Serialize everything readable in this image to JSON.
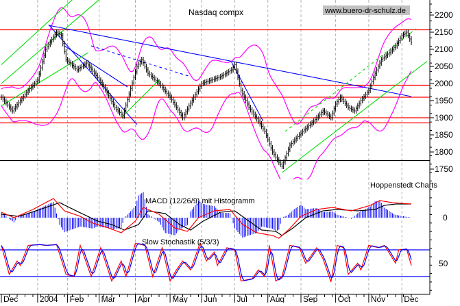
{
  "chart_data": {
    "type": "line",
    "title": "Nasdaq compx",
    "watermark": "www.buero-dr-schulz.de",
    "source_label": "Hoppenstedt Charts",
    "colors": {
      "price": "#000000",
      "bands": "#ff00ff",
      "resistance": "#ff0000",
      "trend_blue": "#0000ff",
      "trend_green": "#00ff00",
      "macd": "#000000",
      "signal": "#ff0000",
      "histogram": "#0000ff",
      "stoch_k": "#ff0000",
      "stoch_d": "#0000ff"
    },
    "x_unit": "trading day index",
    "month_ticks": [
      {
        "day": 0,
        "label": "Dec"
      },
      {
        "day": 23,
        "label": "2004"
      },
      {
        "day": 42,
        "label": "Feb"
      },
      {
        "day": 62,
        "label": "Mar"
      },
      {
        "day": 85,
        "label": "Apr"
      },
      {
        "day": 107,
        "label": "May"
      },
      {
        "day": 127,
        "label": "Jun"
      },
      {
        "day": 148,
        "label": "Jul"
      },
      {
        "day": 169,
        "label": "Aug"
      },
      {
        "day": 190,
        "label": "Sep"
      },
      {
        "day": 212,
        "label": "Oct"
      },
      {
        "day": 233,
        "label": "Nov"
      },
      {
        "day": 254,
        "label": "Dec"
      }
    ],
    "price_axis": {
      "ticks": [
        2200,
        2150,
        2100,
        2050,
        2000,
        1950,
        1900,
        1850,
        1800,
        1750
      ],
      "ylim": [
        1730,
        2245
      ]
    },
    "price_points": [
      [
        0,
        1960
      ],
      [
        7,
        1920
      ],
      [
        17,
        1980
      ],
      [
        23,
        2010
      ],
      [
        28,
        2100
      ],
      [
        35,
        2150
      ],
      [
        38,
        2140
      ],
      [
        41,
        2070
      ],
      [
        48,
        2040
      ],
      [
        54,
        2060
      ],
      [
        59,
        2030
      ],
      [
        65,
        1990
      ],
      [
        72,
        1930
      ],
      [
        77,
        1905
      ],
      [
        86,
        2050
      ],
      [
        89,
        2070
      ],
      [
        93,
        2030
      ],
      [
        100,
        2000
      ],
      [
        107,
        1960
      ],
      [
        111,
        1930
      ],
      [
        115,
        1900
      ],
      [
        122,
        1960
      ],
      [
        127,
        2000
      ],
      [
        133,
        2010
      ],
      [
        139,
        2020
      ],
      [
        146,
        2040
      ],
      [
        148,
        2055
      ],
      [
        152,
        1980
      ],
      [
        157,
        1930
      ],
      [
        163,
        1890
      ],
      [
        167,
        1860
      ],
      [
        172,
        1800
      ],
      [
        176,
        1770
      ],
      [
        178,
        1758
      ],
      [
        183,
        1820
      ],
      [
        187,
        1840
      ],
      [
        191,
        1860
      ],
      [
        198,
        1890
      ],
      [
        204,
        1920
      ],
      [
        209,
        1900
      ],
      [
        212,
        1940
      ],
      [
        215,
        1960
      ],
      [
        220,
        1930
      ],
      [
        224,
        1920
      ],
      [
        228,
        1950
      ],
      [
        233,
        1980
      ],
      [
        237,
        2030
      ],
      [
        241,
        2070
      ],
      [
        246,
        2090
      ],
      [
        250,
        2110
      ],
      [
        254,
        2140
      ],
      [
        257,
        2150
      ],
      [
        260,
        2120
      ]
    ],
    "horizontal_lines": [
      {
        "price": 2157,
        "color": "red"
      },
      {
        "price": 1995,
        "color": "red"
      },
      {
        "price": 1960,
        "color": "red"
      },
      {
        "price": 1900,
        "color": "red"
      },
      {
        "price": 1885,
        "color": "red"
      },
      {
        "price": 1775,
        "color": "black"
      }
    ],
    "trend_lines": [
      {
        "from": [
          30,
          2170
        ],
        "to": [
          260,
          1962
        ],
        "color": "blue",
        "dashed": false
      },
      {
        "from": [
          30,
          2172
        ],
        "to": [
          86,
          1880
        ],
        "color": "blue",
        "dashed": false
      },
      {
        "from": [
          40,
          2110
        ],
        "to": [
          80,
          1990
        ],
        "color": "blue",
        "dashed": false
      },
      {
        "from": [
          57,
          2110
        ],
        "to": [
          120,
          2020
        ],
        "color": "blue",
        "dashed": true
      },
      {
        "from": [
          146,
          2062
        ],
        "to": [
          166,
          1890
        ],
        "color": "blue",
        "dashed": false
      },
      {
        "from": [
          0,
          2055
        ],
        "to": [
          45,
          2245
        ],
        "color": "green",
        "dashed": false
      },
      {
        "from": [
          0,
          2000
        ],
        "to": [
          62,
          2245
        ],
        "color": "green",
        "dashed": false
      },
      {
        "from": [
          0,
          1935
        ],
        "to": [
          55,
          2090
        ],
        "color": "green",
        "dashed": false
      },
      {
        "from": [
          76,
          1900
        ],
        "to": [
          100,
          2010
        ],
        "color": "green",
        "dashed": false
      },
      {
        "from": [
          178,
          1740
        ],
        "to": [
          270,
          2065
        ],
        "color": "green",
        "dashed": false
      },
      {
        "from": [
          180,
          1860
        ],
        "to": [
          263,
          2160
        ],
        "color": "green",
        "dashed": true
      }
    ],
    "macd": {
      "label": "MACD (12/26/9) mit Histogramm",
      "zero_label": "0",
      "macd_points": [
        [
          0,
          5
        ],
        [
          11,
          2
        ],
        [
          22,
          10
        ],
        [
          37,
          22
        ],
        [
          43,
          15
        ],
        [
          52,
          5
        ],
        [
          61,
          -5
        ],
        [
          70,
          -10
        ],
        [
          78,
          -18
        ],
        [
          87,
          -10
        ],
        [
          93,
          10
        ],
        [
          104,
          6
        ],
        [
          113,
          -10
        ],
        [
          120,
          -18
        ],
        [
          128,
          -5
        ],
        [
          139,
          8
        ],
        [
          148,
          10
        ],
        [
          157,
          -5
        ],
        [
          165,
          -18
        ],
        [
          174,
          -20
        ],
        [
          178,
          -26
        ],
        [
          185,
          -15
        ],
        [
          193,
          0
        ],
        [
          204,
          10
        ],
        [
          213,
          12
        ],
        [
          226,
          10
        ],
        [
          237,
          12
        ],
        [
          243,
          18
        ],
        [
          250,
          20
        ],
        [
          260,
          20
        ]
      ],
      "signal_points": [
        [
          0,
          8
        ],
        [
          8,
          0
        ],
        [
          20,
          12
        ],
        [
          33,
          28
        ],
        [
          40,
          10
        ],
        [
          50,
          2
        ],
        [
          58,
          -8
        ],
        [
          68,
          -15
        ],
        [
          76,
          -22
        ],
        [
          85,
          -5
        ],
        [
          90,
          15
        ],
        [
          100,
          5
        ],
        [
          110,
          -15
        ],
        [
          118,
          -20
        ],
        [
          125,
          0
        ],
        [
          135,
          10
        ],
        [
          145,
          12
        ],
        [
          153,
          -10
        ],
        [
          162,
          -22
        ],
        [
          172,
          -26
        ],
        [
          176,
          -30
        ],
        [
          182,
          -18
        ],
        [
          190,
          2
        ],
        [
          200,
          12
        ],
        [
          210,
          15
        ],
        [
          222,
          10
        ],
        [
          234,
          18
        ],
        [
          240,
          25
        ],
        [
          248,
          22
        ],
        [
          260,
          20
        ]
      ]
    },
    "stochastic": {
      "label": "Slow Stochastik (5/3/3)",
      "tick_label": "50",
      "levels": [
        80,
        20
      ],
      "ylim": [
        0,
        100
      ],
      "k_points": [
        [
          0,
          90
        ],
        [
          5,
          25
        ],
        [
          10,
          55
        ],
        [
          12,
          45
        ],
        [
          17,
          90
        ],
        [
          24,
          92
        ],
        [
          28,
          90
        ],
        [
          35,
          92
        ],
        [
          41,
          25
        ],
        [
          46,
          20
        ],
        [
          50,
          90
        ],
        [
          57,
          20
        ],
        [
          63,
          85
        ],
        [
          70,
          10
        ],
        [
          76,
          55
        ],
        [
          79,
          20
        ],
        [
          85,
          95
        ],
        [
          91,
          90
        ],
        [
          96,
          20
        ],
        [
          102,
          85
        ],
        [
          107,
          10
        ],
        [
          111,
          35
        ],
        [
          115,
          55
        ],
        [
          120,
          35
        ],
        [
          126,
          95
        ],
        [
          130,
          55
        ],
        [
          135,
          75
        ],
        [
          137,
          45
        ],
        [
          143,
          85
        ],
        [
          148,
          80
        ],
        [
          152,
          10
        ],
        [
          159,
          15
        ],
        [
          163,
          35
        ],
        [
          167,
          20
        ],
        [
          170,
          90
        ],
        [
          174,
          10
        ],
        [
          178,
          20
        ],
        [
          183,
          90
        ],
        [
          189,
          85
        ],
        [
          193,
          50
        ],
        [
          200,
          85
        ],
        [
          204,
          60
        ],
        [
          209,
          8
        ],
        [
          213,
          90
        ],
        [
          217,
          85
        ],
        [
          220,
          25
        ],
        [
          226,
          50
        ],
        [
          228,
          35
        ],
        [
          233,
          90
        ],
        [
          239,
          85
        ],
        [
          243,
          90
        ],
        [
          250,
          50
        ],
        [
          252,
          80
        ],
        [
          257,
          82
        ],
        [
          260,
          45
        ]
      ]
    }
  }
}
